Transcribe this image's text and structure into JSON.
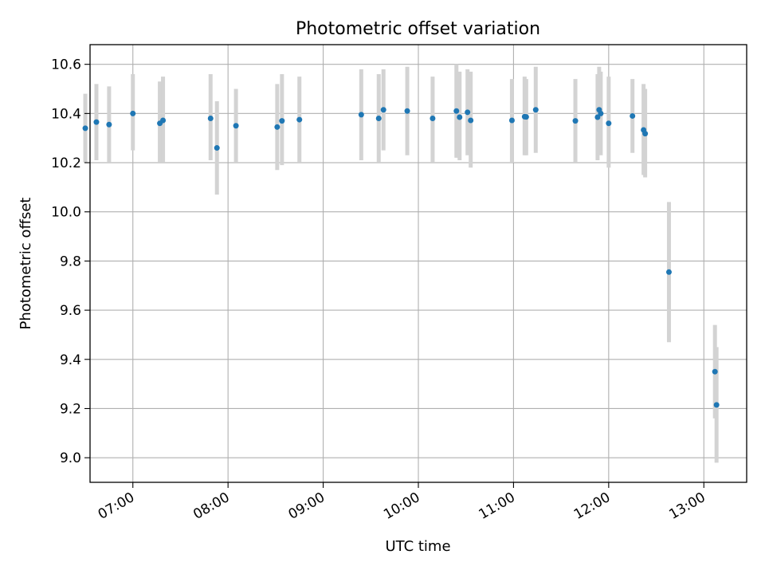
{
  "chart_data": {
    "type": "scatter",
    "title": "Photometric offset variation",
    "xlabel": "UTC time",
    "ylabel": "Photometric offset",
    "xlim": [
      "06:33",
      "13:27"
    ],
    "ylim": [
      8.9,
      10.68
    ],
    "x_ticks": [
      "07:00",
      "08:00",
      "09:00",
      "10:00",
      "11:00",
      "12:00",
      "13:00"
    ],
    "y_ticks": [
      "9.0",
      "9.2",
      "9.4",
      "9.6",
      "9.8",
      "10.0",
      "10.2",
      "10.4",
      "10.6"
    ],
    "grid": true,
    "colors": {
      "points": "#1f77b4",
      "error_bars": "#d3d3d3",
      "grid": "#b0b0b0"
    },
    "points": [
      {
        "x": "06:30",
        "y": 10.34,
        "ylow": 10.2,
        "yhigh": 10.48
      },
      {
        "x": "06:37",
        "y": 10.365,
        "ylow": 10.21,
        "yhigh": 10.52
      },
      {
        "x": "06:45",
        "y": 10.355,
        "ylow": 10.2,
        "yhigh": 10.51
      },
      {
        "x": "07:00",
        "y": 10.4,
        "ylow": 10.25,
        "yhigh": 10.56
      },
      {
        "x": "07:17",
        "y": 10.36,
        "ylow": 10.2,
        "yhigh": 10.53
      },
      {
        "x": "07:19",
        "y": 10.372,
        "ylow": 10.2,
        "yhigh": 10.55
      },
      {
        "x": "07:49",
        "y": 10.38,
        "ylow": 10.21,
        "yhigh": 10.56
      },
      {
        "x": "07:53",
        "y": 10.26,
        "ylow": 10.07,
        "yhigh": 10.45
      },
      {
        "x": "08:05",
        "y": 10.35,
        "ylow": 10.2,
        "yhigh": 10.5
      },
      {
        "x": "08:31",
        "y": 10.345,
        "ylow": 10.17,
        "yhigh": 10.52
      },
      {
        "x": "08:34",
        "y": 10.37,
        "ylow": 10.19,
        "yhigh": 10.56
      },
      {
        "x": "08:45",
        "y": 10.375,
        "ylow": 10.2,
        "yhigh": 10.55
      },
      {
        "x": "09:24",
        "y": 10.395,
        "ylow": 10.21,
        "yhigh": 10.58
      },
      {
        "x": "09:35",
        "y": 10.38,
        "ylow": 10.2,
        "yhigh": 10.56
      },
      {
        "x": "09:38",
        "y": 10.415,
        "ylow": 10.25,
        "yhigh": 10.58
      },
      {
        "x": "09:53",
        "y": 10.41,
        "ylow": 10.23,
        "yhigh": 10.59
      },
      {
        "x": "10:09",
        "y": 10.38,
        "ylow": 10.2,
        "yhigh": 10.55
      },
      {
        "x": "10:24",
        "y": 10.41,
        "ylow": 10.22,
        "yhigh": 10.6
      },
      {
        "x": "10:26",
        "y": 10.385,
        "ylow": 10.21,
        "yhigh": 10.57
      },
      {
        "x": "10:31",
        "y": 10.405,
        "ylow": 10.23,
        "yhigh": 10.58
      },
      {
        "x": "10:33",
        "y": 10.372,
        "ylow": 10.18,
        "yhigh": 10.57
      },
      {
        "x": "10:59",
        "y": 10.372,
        "ylow": 10.2,
        "yhigh": 10.54
      },
      {
        "x": "11:07",
        "y": 10.387,
        "ylow": 10.23,
        "yhigh": 10.55
      },
      {
        "x": "11:08",
        "y": 10.386,
        "ylow": 10.23,
        "yhigh": 10.54
      },
      {
        "x": "11:14",
        "y": 10.415,
        "ylow": 10.24,
        "yhigh": 10.59
      },
      {
        "x": "11:39",
        "y": 10.37,
        "ylow": 10.2,
        "yhigh": 10.54
      },
      {
        "x": "11:53",
        "y": 10.385,
        "ylow": 10.21,
        "yhigh": 10.56
      },
      {
        "x": "11:54",
        "y": 10.415,
        "ylow": 10.24,
        "yhigh": 10.59
      },
      {
        "x": "11:55",
        "y": 10.4,
        "ylow": 10.23,
        "yhigh": 10.57
      },
      {
        "x": "12:00",
        "y": 10.36,
        "ylow": 10.18,
        "yhigh": 10.55
      },
      {
        "x": "12:15",
        "y": 10.39,
        "ylow": 10.24,
        "yhigh": 10.54
      },
      {
        "x": "12:22",
        "y": 10.333,
        "ylow": 10.15,
        "yhigh": 10.52
      },
      {
        "x": "12:23",
        "y": 10.318,
        "ylow": 10.14,
        "yhigh": 10.5
      },
      {
        "x": "12:38",
        "y": 9.755,
        "ylow": 9.47,
        "yhigh": 10.04
      },
      {
        "x": "13:07",
        "y": 9.35,
        "ylow": 9.16,
        "yhigh": 9.54
      },
      {
        "x": "13:08",
        "y": 9.215,
        "ylow": 8.98,
        "yhigh": 9.45
      }
    ]
  }
}
